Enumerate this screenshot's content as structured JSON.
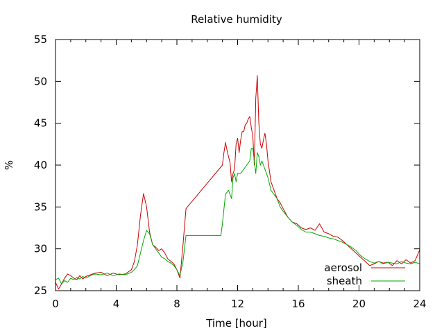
{
  "chart_data": {
    "type": "line",
    "title": "Relative humidity",
    "xlabel": "Time [hour]",
    "ylabel": "%",
    "xlim": [
      0,
      24
    ],
    "ylim": [
      25,
      55
    ],
    "xticks": [
      0,
      4,
      8,
      12,
      16,
      20,
      24
    ],
    "yticks": [
      25,
      30,
      35,
      40,
      45,
      50,
      55
    ],
    "grid": false,
    "legend_position": "bottom-right",
    "series": [
      {
        "name": "aerosol",
        "color": "#cc0000",
        "x": [
          0,
          0.2,
          0.4,
          0.6,
          0.8,
          1.0,
          1.2,
          1.4,
          1.6,
          1.8,
          2.0,
          2.3,
          2.6,
          3.0,
          3.4,
          3.8,
          4.2,
          4.6,
          5.0,
          5.2,
          5.4,
          5.6,
          5.8,
          6.0,
          6.2,
          6.4,
          6.6,
          6.8,
          7.0,
          7.2,
          7.4,
          7.6,
          7.8,
          8.0,
          8.2,
          8.4,
          8.6,
          11.0,
          11.1,
          11.2,
          11.3,
          11.4,
          11.5,
          11.6,
          11.7,
          11.8,
          11.9,
          12.0,
          12.1,
          12.2,
          12.3,
          12.4,
          12.5,
          12.6,
          12.7,
          12.8,
          12.9,
          13.0,
          13.1,
          13.2,
          13.3,
          13.4,
          13.5,
          13.6,
          13.7,
          13.8,
          13.9,
          14.0,
          14.2,
          14.4,
          14.6,
          14.8,
          15.0,
          15.3,
          15.6,
          15.9,
          16.2,
          16.5,
          16.8,
          17.1,
          17.4,
          17.7,
          18.0,
          18.3,
          18.6,
          18.9,
          19.2,
          19.5,
          19.8,
          20.1,
          20.4,
          20.7,
          21.0,
          21.3,
          21.6,
          21.9,
          22.2,
          22.5,
          22.8,
          23.1,
          23.4,
          23.7,
          24.0
        ],
        "values": [
          26.0,
          25.2,
          25.8,
          26.5,
          27.0,
          26.8,
          26.5,
          26.3,
          26.8,
          26.4,
          26.7,
          26.9,
          27.1,
          27.2,
          26.8,
          27.1,
          26.9,
          27.0,
          27.5,
          28.5,
          30.5,
          34.0,
          36.6,
          35.0,
          32.0,
          30.5,
          30.2,
          29.8,
          30.0,
          29.5,
          28.8,
          28.5,
          28.2,
          27.5,
          26.5,
          30.5,
          34.8,
          40.0,
          41.5,
          42.7,
          41.8,
          41.0,
          40.3,
          38.0,
          39.0,
          39.5,
          42.5,
          43.2,
          41.5,
          43.0,
          44.0,
          44.0,
          44.8,
          45.0,
          45.5,
          45.8,
          44.5,
          43.5,
          40.0,
          48.0,
          50.7,
          45.0,
          42.5,
          42.0,
          43.0,
          43.8,
          42.5,
          40.5,
          38.0,
          37.0,
          36.0,
          35.5,
          34.8,
          33.8,
          33.2,
          33.0,
          32.5,
          32.3,
          32.5,
          32.2,
          33.0,
          32.0,
          31.8,
          31.5,
          31.4,
          31.0,
          30.5,
          30.0,
          29.5,
          29.0,
          28.5,
          28.0,
          28.2,
          28.5,
          28.3,
          28.4,
          28.0,
          28.6,
          28.2,
          28.7,
          28.3,
          28.6,
          29.9
        ]
      },
      {
        "name": "sheath",
        "color": "#00aa00",
        "x": [
          0,
          0.2,
          0.4,
          0.6,
          0.8,
          1.0,
          1.2,
          1.4,
          1.6,
          1.8,
          2.0,
          2.3,
          2.6,
          3.0,
          3.4,
          3.8,
          4.2,
          4.6,
          5.0,
          5.2,
          5.4,
          5.6,
          5.8,
          6.0,
          6.2,
          6.4,
          6.6,
          6.8,
          7.0,
          7.2,
          7.4,
          7.6,
          7.8,
          8.0,
          8.2,
          8.4,
          8.6,
          10.9,
          11.0,
          11.2,
          11.4,
          11.6,
          11.7,
          11.8,
          11.9,
          12.0,
          12.2,
          12.4,
          12.6,
          12.8,
          12.9,
          13.0,
          13.1,
          13.2,
          13.3,
          13.4,
          13.5,
          13.6,
          13.7,
          13.8,
          13.9,
          14.0,
          14.2,
          14.4,
          14.6,
          14.8,
          15.0,
          15.3,
          15.6,
          15.9,
          16.2,
          16.5,
          16.8,
          17.1,
          17.4,
          17.7,
          18.0,
          18.3,
          18.6,
          18.9,
          19.2,
          19.5,
          19.8,
          20.1,
          20.4,
          20.7,
          21.0,
          21.3,
          21.6,
          21.9,
          22.2,
          22.5,
          22.8,
          23.1,
          23.4,
          23.7,
          24.0
        ],
        "values": [
          26.3,
          26.5,
          25.8,
          26.2,
          26.0,
          26.5,
          26.3,
          26.6,
          26.4,
          26.7,
          26.5,
          26.8,
          27.0,
          26.9,
          27.1,
          26.8,
          27.0,
          26.9,
          27.2,
          27.5,
          28.0,
          29.5,
          31.0,
          32.2,
          31.8,
          30.5,
          30.0,
          29.5,
          29.0,
          28.8,
          28.5,
          28.3,
          28.0,
          27.5,
          26.8,
          28.5,
          31.6,
          31.6,
          33.0,
          36.5,
          37.0,
          36.0,
          38.5,
          39.0,
          38.0,
          39.0,
          39.0,
          39.5,
          40.0,
          40.5,
          42.0,
          42.0,
          40.5,
          39.0,
          41.5,
          41.0,
          40.0,
          40.5,
          40.0,
          39.5,
          39.0,
          38.5,
          37.0,
          36.5,
          36.0,
          35.0,
          34.5,
          33.8,
          33.2,
          32.8,
          32.3,
          32.0,
          32.0,
          31.8,
          31.6,
          31.5,
          31.3,
          31.2,
          31.0,
          30.8,
          30.5,
          30.2,
          29.8,
          29.2,
          28.8,
          28.5,
          28.3,
          28.5,
          28.2,
          28.4,
          28.3,
          28.2,
          28.5,
          28.3,
          28.2,
          28.4,
          28.2
        ]
      }
    ]
  }
}
